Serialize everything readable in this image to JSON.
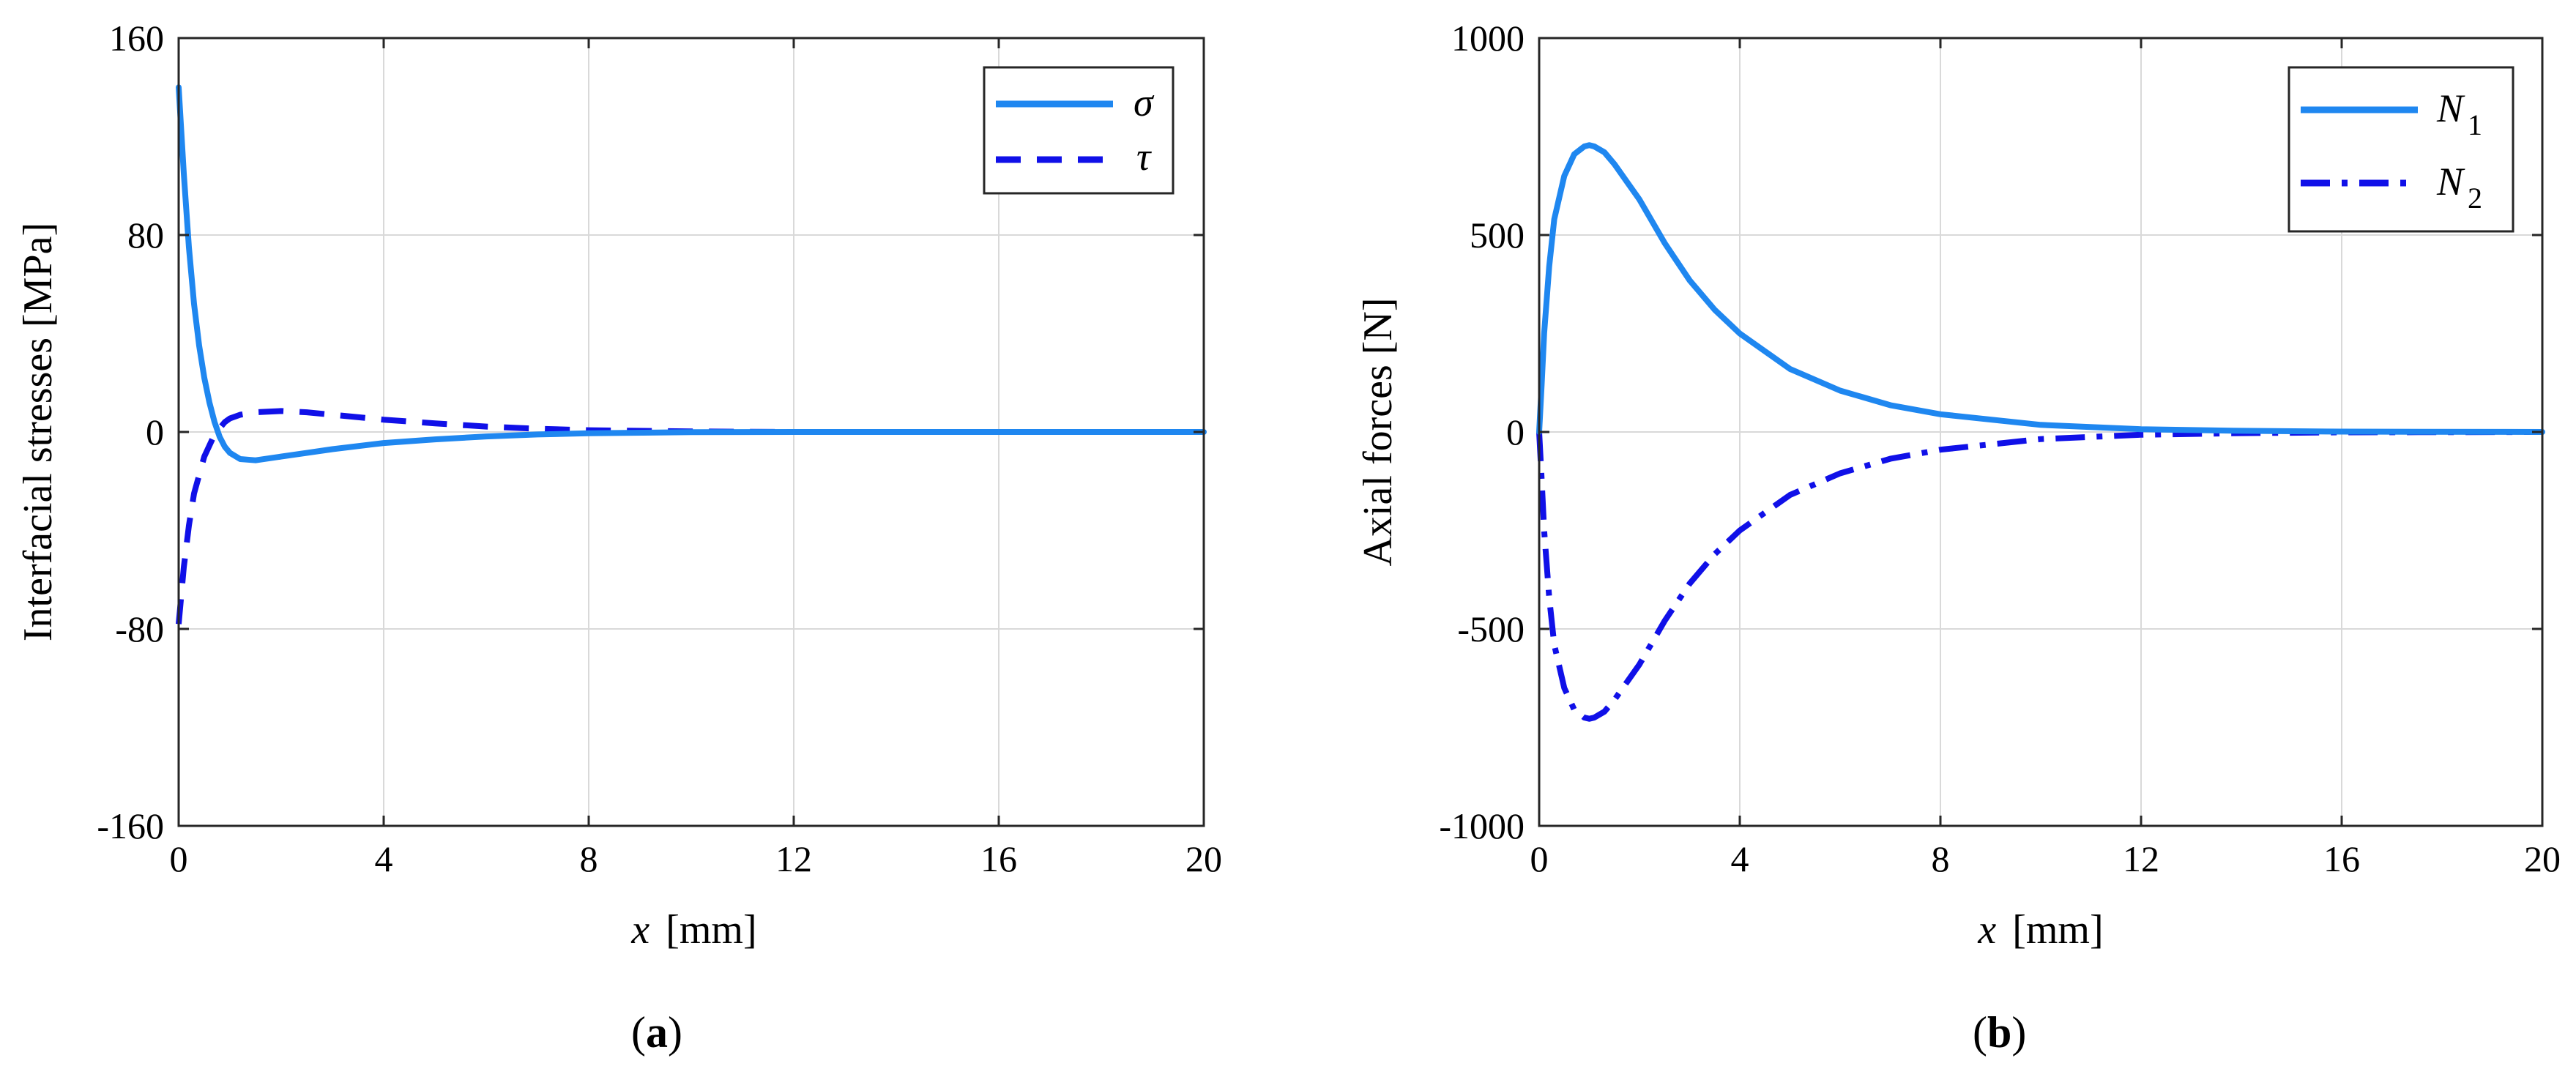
{
  "chart_data": [
    {
      "type": "line",
      "panel_label_open": "(",
      "panel_label": "a",
      "panel_label_close": ")",
      "xlabel_var": "x",
      "xlabel_unit": "[mm]",
      "ylabel": "Interfacial stresses  [MPa]",
      "xlim": [
        0,
        20
      ],
      "ylim": [
        -160,
        160
      ],
      "xticks": [
        0,
        4,
        8,
        12,
        16,
        20
      ],
      "yticks": [
        -160,
        -80,
        0,
        80,
        160
      ],
      "grid": true,
      "legend_position": "top-right",
      "series": [
        {
          "name": "σ",
          "style": "solid",
          "color": "#1f87f0",
          "x": [
            0,
            0.1,
            0.2,
            0.3,
            0.4,
            0.5,
            0.6,
            0.7,
            0.8,
            0.9,
            1.0,
            1.2,
            1.5,
            2.0,
            2.5,
            3.0,
            4.0,
            5.0,
            6.0,
            7.0,
            8.0,
            10.0,
            12.0,
            16.0,
            20.0
          ],
          "y": [
            140,
            105,
            75,
            52,
            35,
            22,
            12,
            4,
            -2,
            -6,
            -8.5,
            -11,
            -11.5,
            -10,
            -8.5,
            -7,
            -4.5,
            -3,
            -1.8,
            -1,
            -0.5,
            -0.1,
            0,
            0,
            0
          ]
        },
        {
          "name": "τ",
          "style": "dashed",
          "color": "#1010e8",
          "x": [
            0,
            0.1,
            0.2,
            0.3,
            0.5,
            0.7,
            0.9,
            1.0,
            1.2,
            1.5,
            2.0,
            2.5,
            3.0,
            4.0,
            5.0,
            6.0,
            7.0,
            8.0,
            10.0,
            12.0,
            16.0,
            20.0
          ],
          "y": [
            -78,
            -55,
            -38,
            -25,
            -10,
            -1,
            4,
            5.5,
            7,
            8,
            8.5,
            8,
            7,
            5,
            3.5,
            2.2,
            1.3,
            0.7,
            0.2,
            0,
            0,
            0
          ]
        }
      ]
    },
    {
      "type": "line",
      "panel_label_open": "(",
      "panel_label": "b",
      "panel_label_close": ")",
      "xlabel_var": "x",
      "xlabel_unit": "[mm]",
      "ylabel": "Axial forces  [N]",
      "xlim": [
        0,
        20
      ],
      "ylim": [
        -1000,
        1000
      ],
      "xticks": [
        0,
        4,
        8,
        12,
        16,
        20
      ],
      "yticks": [
        -1000,
        -500,
        0,
        500,
        1000
      ],
      "grid": true,
      "legend_position": "top-right",
      "series": [
        {
          "name": "N",
          "subscript": "1",
          "style": "solid",
          "color": "#1f87f0",
          "x": [
            0,
            0.05,
            0.1,
            0.2,
            0.3,
            0.5,
            0.7,
            0.9,
            1.0,
            1.1,
            1.3,
            1.5,
            2.0,
            2.5,
            3.0,
            3.5,
            4.0,
            5.0,
            6.0,
            7.0,
            8.0,
            10.0,
            12.0,
            14.0,
            16.0,
            20.0
          ],
          "y": [
            0,
            120,
            250,
            420,
            540,
            650,
            705,
            725,
            728,
            725,
            710,
            680,
            590,
            480,
            385,
            310,
            250,
            160,
            105,
            68,
            45,
            18,
            7,
            3,
            1,
            0
          ]
        },
        {
          "name": "N",
          "subscript": "2",
          "style": "dashdot",
          "color": "#1010e8",
          "x": [
            0,
            0.05,
            0.1,
            0.2,
            0.3,
            0.5,
            0.7,
            0.9,
            1.0,
            1.1,
            1.3,
            1.5,
            2.0,
            2.5,
            3.0,
            3.5,
            4.0,
            5.0,
            6.0,
            7.0,
            8.0,
            10.0,
            12.0,
            14.0,
            16.0,
            20.0
          ],
          "y": [
            0,
            -120,
            -250,
            -420,
            -540,
            -650,
            -705,
            -725,
            -728,
            -725,
            -710,
            -680,
            -590,
            -480,
            -385,
            -310,
            -250,
            -160,
            -105,
            -68,
            -45,
            -18,
            -7,
            -3,
            -1,
            0
          ]
        }
      ]
    }
  ]
}
